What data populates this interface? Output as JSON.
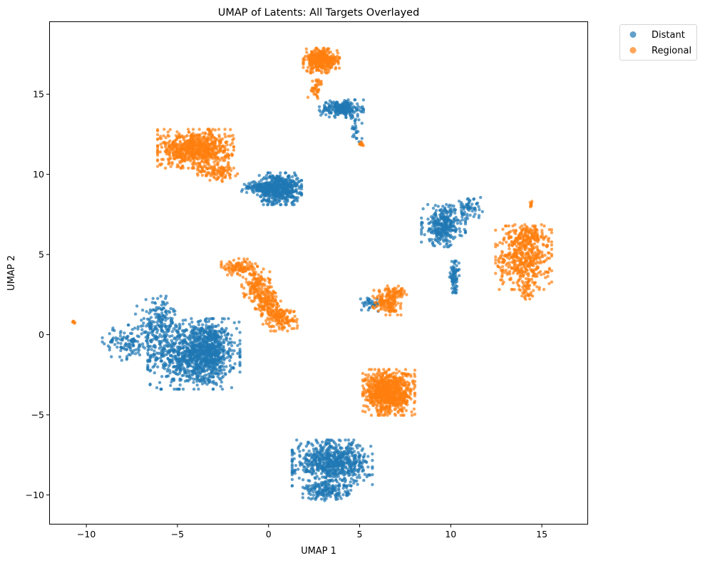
{
  "chart_data": {
    "type": "scatter",
    "title": "UMAP of Latents: All Targets Overlayed",
    "xlabel": "UMAP 1",
    "ylabel": "UMAP 2",
    "xlim": [
      -12,
      17.5
    ],
    "ylim": [
      -11.8,
      19.5
    ],
    "xticks": [
      -10,
      -5,
      0,
      5,
      10,
      15
    ],
    "yticks": [
      -10,
      -5,
      0,
      5,
      10,
      15
    ],
    "grid": false,
    "legend_position": "outside-top-right",
    "series": [
      {
        "name": "Distant",
        "color": "#1f77b4",
        "clusters": [
          {
            "cx": -4.1,
            "cy": -1.2,
            "sx": 1.15,
            "sy": 1.0,
            "n": 950
          },
          {
            "cx": -3.2,
            "cy": -1.0,
            "sx": 0.45,
            "sy": 0.9,
            "n": 300
          },
          {
            "cx": -6.2,
            "cy": 0.5,
            "sx": 0.5,
            "sy": 0.8,
            "n": 120
          },
          {
            "cx": -7.8,
            "cy": -0.5,
            "sx": 0.6,
            "sy": 0.5,
            "n": 110
          },
          {
            "cx": -5.8,
            "cy": 1.3,
            "sx": 0.3,
            "sy": 0.5,
            "n": 60
          },
          {
            "cx": 0.6,
            "cy": 9.1,
            "sx": 0.55,
            "sy": 0.45,
            "n": 550
          },
          {
            "cx": -0.6,
            "cy": 9.2,
            "sx": 0.4,
            "sy": 0.15,
            "n": 80
          },
          {
            "cx": 4.0,
            "cy": 14.1,
            "sx": 0.55,
            "sy": 0.25,
            "n": 230
          },
          {
            "cx": 4.8,
            "cy": 12.9,
            "sx": 0.15,
            "sy": 0.5,
            "n": 30
          },
          {
            "cx": 9.6,
            "cy": 6.8,
            "sx": 0.55,
            "sy": 0.6,
            "n": 320
          },
          {
            "cx": 10.2,
            "cy": 3.6,
            "sx": 0.12,
            "sy": 0.45,
            "n": 80
          },
          {
            "cx": 11.0,
            "cy": 7.9,
            "sx": 0.35,
            "sy": 0.3,
            "n": 60
          },
          {
            "cx": 5.6,
            "cy": 1.9,
            "sx": 0.25,
            "sy": 0.2,
            "n": 40
          },
          {
            "cx": 3.5,
            "cy": -8.0,
            "sx": 1.0,
            "sy": 0.65,
            "n": 700
          },
          {
            "cx": 3.2,
            "cy": -9.8,
            "sx": 0.6,
            "sy": 0.25,
            "n": 160
          }
        ]
      },
      {
        "name": "Regional",
        "color": "#ff7f0e",
        "clusters": [
          {
            "cx": 2.9,
            "cy": 17.1,
            "sx": 0.45,
            "sy": 0.35,
            "n": 350
          },
          {
            "cx": 2.6,
            "cy": 15.4,
            "sx": 0.2,
            "sy": 0.3,
            "n": 40
          },
          {
            "cx": -4.0,
            "cy": 11.6,
            "sx": 0.95,
            "sy": 0.55,
            "n": 750
          },
          {
            "cx": -2.8,
            "cy": 10.1,
            "sx": 0.5,
            "sy": 0.25,
            "n": 100
          },
          {
            "cx": -1.6,
            "cy": 4.2,
            "sx": 0.45,
            "sy": 0.25,
            "n": 110
          },
          {
            "cx": -0.7,
            "cy": 3.1,
            "sx": 0.35,
            "sy": 0.45,
            "n": 130
          },
          {
            "cx": -0.1,
            "cy": 2.1,
            "sx": 0.35,
            "sy": 0.4,
            "n": 140
          },
          {
            "cx": 0.6,
            "cy": 1.0,
            "sx": 0.45,
            "sy": 0.35,
            "n": 150
          },
          {
            "cx": 6.6,
            "cy": -3.6,
            "sx": 0.65,
            "sy": 0.65,
            "n": 850
          },
          {
            "cx": 6.5,
            "cy": 2.0,
            "sx": 0.35,
            "sy": 0.35,
            "n": 150
          },
          {
            "cx": 7.0,
            "cy": 2.6,
            "sx": 0.3,
            "sy": 0.2,
            "n": 50
          },
          {
            "cx": 14.0,
            "cy": 4.8,
            "sx": 0.7,
            "sy": 0.9,
            "n": 450
          },
          {
            "cx": 14.2,
            "cy": 2.9,
            "sx": 0.2,
            "sy": 0.4,
            "n": 40
          },
          {
            "cx": 14.3,
            "cy": 6.2,
            "sx": 0.5,
            "sy": 0.3,
            "n": 100
          },
          {
            "cx": 5.1,
            "cy": 11.9,
            "sx": 0.05,
            "sy": 0.1,
            "n": 10
          },
          {
            "cx": 14.4,
            "cy": 8.1,
            "sx": 0.05,
            "sy": 0.1,
            "n": 8
          },
          {
            "cx": -10.7,
            "cy": 0.8,
            "sx": 0.04,
            "sy": 0.04,
            "n": 6
          }
        ]
      }
    ]
  }
}
